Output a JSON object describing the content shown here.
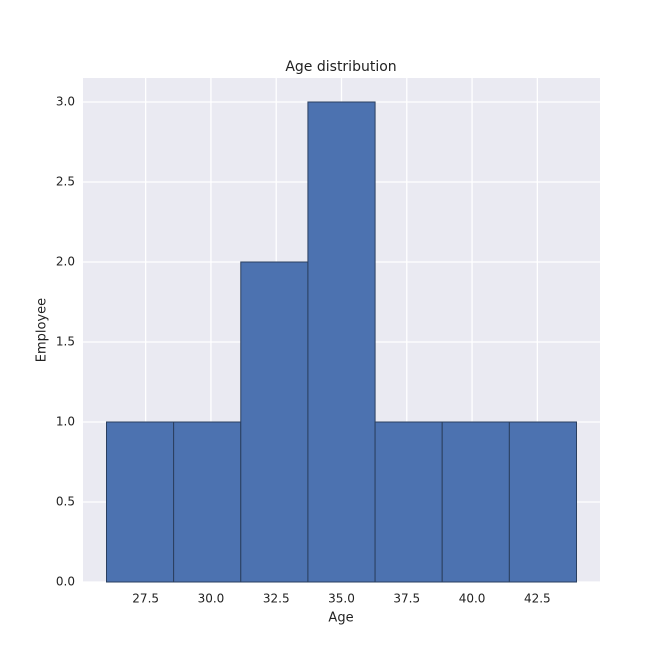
{
  "chart_data": {
    "type": "histogram",
    "title": "Age distribution",
    "x_label": "Age",
    "y_label": "Employee",
    "bins": [
      26,
      28.571,
      31.143,
      33.714,
      36.286,
      38.857,
      41.429,
      44
    ],
    "values": [
      1,
      1,
      2,
      3,
      1,
      1,
      1
    ],
    "color": "#4c72b0",
    "edge_color": "#2a3f5f",
    "xlim": [
      25.1,
      44.9
    ],
    "ylim": [
      0,
      3.15
    ],
    "xticks": [
      27.5,
      {
        "value": 30,
        "label": "30.0"
      },
      32.5,
      {
        "value": 35,
        "label": "35.0"
      },
      37.5,
      {
        "value": 40,
        "label": "40.0"
      },
      42.5
    ],
    "yticks": [
      {
        "value": 0,
        "label": "0.0"
      },
      0.5,
      {
        "value": 1,
        "label": "1.0"
      },
      1.5,
      {
        "value": 2,
        "label": "2.0"
      },
      2.5,
      {
        "value": 3,
        "label": "3.0"
      }
    ],
    "grid": true
  }
}
